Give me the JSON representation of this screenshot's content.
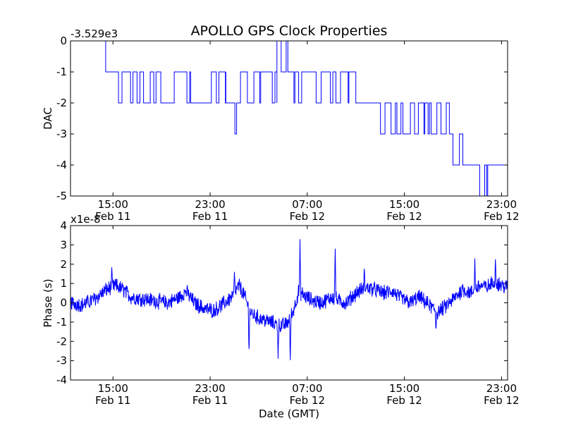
{
  "chart_data": [
    {
      "type": "line",
      "title": "APOLLO GPS Clock Properties",
      "ylabel": "DAC",
      "xlabel": "",
      "offset_label": "-3.529e3",
      "ylim": [
        -5,
        0
      ],
      "yticks": [
        -5,
        -4,
        -3,
        -2,
        -1,
        0
      ],
      "ytick_labels": [
        "-5",
        "-4",
        "-3",
        "-2",
        "-1",
        "0"
      ],
      "xlim_hours": [
        11.5,
        47.5
      ],
      "xticks_hours": [
        15,
        23,
        31,
        39,
        47
      ],
      "xtick_labels": [
        [
          "15:00",
          "Feb 11"
        ],
        [
          "23:00",
          "Feb 11"
        ],
        [
          "07:00",
          "Feb 12"
        ],
        [
          "15:00",
          "Feb 12"
        ],
        [
          "23:00",
          "Feb 12"
        ]
      ],
      "series_color": "#0000ff",
      "series": [
        {
          "name": "DAC",
          "segments": [
            {
              "start": 11.5,
              "end": 14.4,
              "base": 0,
              "alt": 1
            },
            {
              "start": 14.4,
              "end": 21.4,
              "base": -1,
              "alt": -1
            },
            {
              "start": 21.4,
              "end": 23.1,
              "base": -2,
              "alt": 1
            },
            {
              "start": 23.1,
              "end": 24.3,
              "base": -1,
              "alt": -1
            },
            {
              "start": 24.3,
              "end": 25.5,
              "base": -2,
              "alt": -1
            },
            {
              "start": 25.5,
              "end": 28.5,
              "base": -1,
              "alt": -1
            },
            {
              "start": 28.5,
              "end": 29.4,
              "base": 0,
              "alt": -1
            },
            {
              "start": 29.4,
              "end": 35.0,
              "base": -1,
              "alt": -1
            },
            {
              "start": 35.0,
              "end": 37.9,
              "base": -2,
              "alt": -1
            },
            {
              "start": 37.9,
              "end": 43.0,
              "base": -3,
              "alt": 1
            },
            {
              "start": 43.0,
              "end": 44.3,
              "base": -4,
              "alt": 1
            },
            {
              "start": 44.3,
              "end": 47.5,
              "base": -4,
              "alt": -1
            }
          ]
        }
      ]
    },
    {
      "type": "line",
      "title": "",
      "ylabel": "Phase (s)",
      "xlabel": "Date (GMT)",
      "offset_label": "x1e-8",
      "ylim": [
        -4,
        4
      ],
      "yticks": [
        -4,
        -3,
        -2,
        -1,
        0,
        1,
        2,
        3,
        4
      ],
      "ytick_labels": [
        "-4",
        "-3",
        "-2",
        "-1",
        "0",
        "1",
        "2",
        "3",
        "4"
      ],
      "xlim_hours": [
        11.5,
        47.5
      ],
      "xticks_hours": [
        15,
        23,
        31,
        39,
        47
      ],
      "xtick_labels": [
        [
          "15:00",
          "Feb 11"
        ],
        [
          "23:00",
          "Feb 11"
        ],
        [
          "07:00",
          "Feb 12"
        ],
        [
          "15:00",
          "Feb 12"
        ],
        [
          "23:00",
          "Feb 12"
        ]
      ],
      "series_color": "#0000ff",
      "series": [
        {
          "name": "Phase",
          "trend": [
            [
              11.5,
              0.0
            ],
            [
              12.5,
              -0.1
            ],
            [
              13.5,
              0.2
            ],
            [
              14.5,
              0.7
            ],
            [
              15.2,
              0.9
            ],
            [
              15.8,
              0.7
            ],
            [
              16.5,
              0.3
            ],
            [
              17.5,
              0.2
            ],
            [
              18.5,
              0.1
            ],
            [
              19.5,
              0.0
            ],
            [
              20.5,
              0.3
            ],
            [
              21.0,
              0.6
            ],
            [
              21.7,
              0.0
            ],
            [
              22.5,
              -0.3
            ],
            [
              23.3,
              -0.4
            ],
            [
              24.0,
              -0.1
            ],
            [
              24.8,
              0.3
            ],
            [
              25.4,
              0.9
            ],
            [
              25.8,
              0.4
            ],
            [
              26.3,
              -0.5
            ],
            [
              27.0,
              -0.8
            ],
            [
              28.0,
              -1.0
            ],
            [
              28.8,
              -1.2
            ],
            [
              29.3,
              -1.1
            ],
            [
              29.8,
              -0.5
            ],
            [
              30.3,
              0.6
            ],
            [
              30.9,
              0.3
            ],
            [
              31.5,
              0.1
            ],
            [
              32.2,
              0.0
            ],
            [
              33.0,
              0.3
            ],
            [
              33.6,
              0.1
            ],
            [
              34.2,
              0.0
            ],
            [
              35.0,
              0.5
            ],
            [
              35.8,
              0.8
            ],
            [
              36.5,
              0.7
            ],
            [
              37.3,
              0.5
            ],
            [
              38.0,
              0.6
            ],
            [
              38.8,
              0.2
            ],
            [
              39.5,
              0.0
            ],
            [
              40.2,
              0.3
            ],
            [
              41.0,
              -0.1
            ],
            [
              41.7,
              -0.5
            ],
            [
              42.4,
              -0.2
            ],
            [
              43.2,
              0.3
            ],
            [
              43.8,
              0.7
            ],
            [
              44.5,
              0.5
            ],
            [
              45.2,
              0.9
            ],
            [
              45.8,
              0.8
            ],
            [
              46.4,
              1.1
            ],
            [
              47.0,
              0.9
            ],
            [
              47.5,
              0.8
            ]
          ],
          "spikes": [
            [
              14.9,
              1.9
            ],
            [
              25.0,
              1.6
            ],
            [
              26.2,
              -2.7
            ],
            [
              28.6,
              -2.9
            ],
            [
              29.6,
              -3.1
            ],
            [
              30.4,
              3.3
            ],
            [
              33.3,
              3.1
            ],
            [
              35.7,
              1.8
            ],
            [
              41.6,
              -1.5
            ],
            [
              44.8,
              2.3
            ],
            [
              46.5,
              2.3
            ]
          ],
          "noise_amplitude": 0.35
        }
      ]
    }
  ]
}
